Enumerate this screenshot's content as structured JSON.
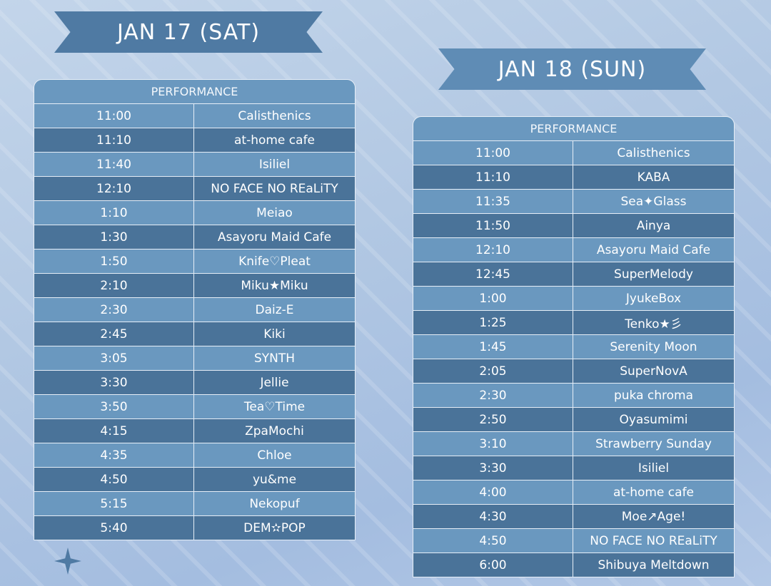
{
  "day1": {
    "banner": "JAN 17 (SAT)",
    "header": "PERFORMANCE",
    "rows": [
      {
        "time": "11:00",
        "act": "Calisthenics"
      },
      {
        "time": "11:10",
        "act": "at-home cafe"
      },
      {
        "time": "11:40",
        "act": "Isiliel"
      },
      {
        "time": "12:10",
        "act": "NO FACE NO REaLiTY"
      },
      {
        "time": "1:10",
        "act": "Meiao"
      },
      {
        "time": "1:30",
        "act": "Asayoru Maid Cafe"
      },
      {
        "time": "1:50",
        "act": "Knife♡Pleat"
      },
      {
        "time": "2:10",
        "act": "Miku★Miku"
      },
      {
        "time": "2:30",
        "act": "Daiz-E"
      },
      {
        "time": "2:45",
        "act": "Kiki"
      },
      {
        "time": "3:05",
        "act": "SYNTH"
      },
      {
        "time": "3:30",
        "act": "Jellie"
      },
      {
        "time": "3:50",
        "act": "Tea♡Time"
      },
      {
        "time": "4:15",
        "act": "ZpaMochi"
      },
      {
        "time": "4:35",
        "act": "Chloe"
      },
      {
        "time": "4:50",
        "act": "yu&me"
      },
      {
        "time": "5:15",
        "act": "Nekopuf"
      },
      {
        "time": "5:40",
        "act": "DEM✫POP"
      }
    ]
  },
  "day2": {
    "banner": "JAN 18 (SUN)",
    "header": "PERFORMANCE",
    "rows": [
      {
        "time": "11:00",
        "act": "Calisthenics"
      },
      {
        "time": "11:10",
        "act": "KABA"
      },
      {
        "time": "11:35",
        "act": "Sea✦Glass"
      },
      {
        "time": "11:50",
        "act": "Ainya"
      },
      {
        "time": "12:10",
        "act": "Asayoru Maid Cafe"
      },
      {
        "time": "12:45",
        "act": "SuperMelody"
      },
      {
        "time": "1:00",
        "act": "JyukeBox"
      },
      {
        "time": "1:25",
        "act": "Tenko★彡"
      },
      {
        "time": "1:45",
        "act": "Serenity Moon"
      },
      {
        "time": "2:05",
        "act": "SuperNovA"
      },
      {
        "time": "2:30",
        "act": "puka chroma"
      },
      {
        "time": "2:50",
        "act": "Oyasumimi"
      },
      {
        "time": "3:10",
        "act": "Strawberry Sunday"
      },
      {
        "time": "3:30",
        "act": "Isiliel"
      },
      {
        "time": "4:00",
        "act": "at-home cafe"
      },
      {
        "time": "4:30",
        "act": "Moe↗Age!"
      },
      {
        "time": "4:50",
        "act": "NO FACE NO REaLiTY"
      },
      {
        "time": "6:00",
        "act": "Shibuya Meltdown"
      }
    ]
  },
  "colors": {
    "row_light": "#6a98bf",
    "row_dark": "#4a7399",
    "banner_sat": "#4f7aa3",
    "banner_sun": "#5f8cb5"
  },
  "icons": {
    "sparkle": "four-point-sparkle-icon"
  }
}
